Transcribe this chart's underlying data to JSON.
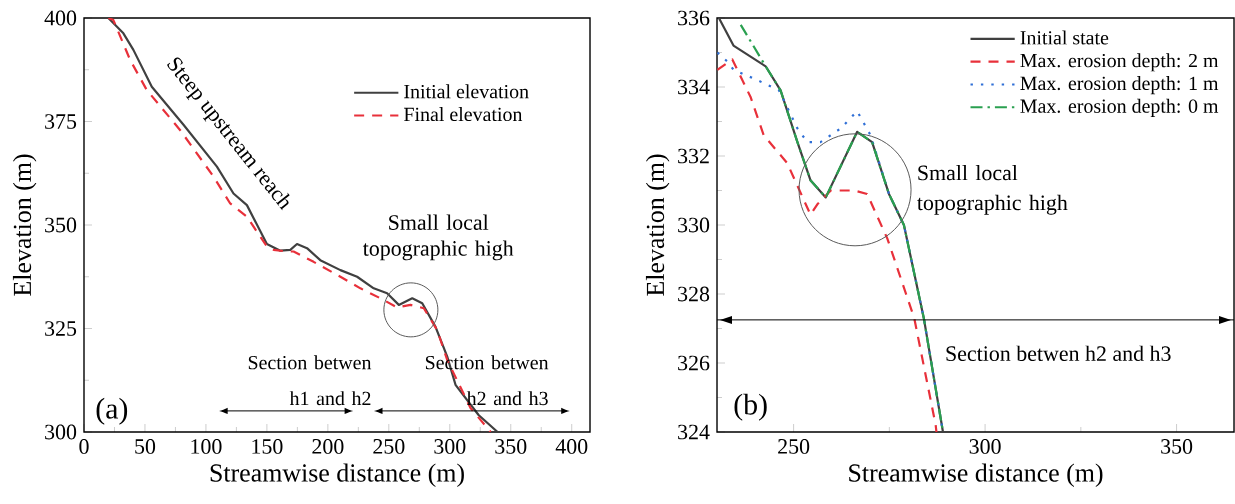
{
  "chart_data": [
    {
      "type": "line",
      "xlabel": "Streamwise distance (m)",
      "ylabel": "Elevation (m)",
      "xlim": [
        0,
        415
      ],
      "ylim": [
        300,
        400
      ],
      "xticks": [
        0,
        50,
        100,
        150,
        200,
        250,
        300,
        350,
        400
      ],
      "yticks": [
        300,
        325,
        350,
        375,
        400
      ],
      "legend": "top right",
      "annotations": [
        "Steep upstream reach",
        "Small local topographic high",
        "Section betwen h1 and h2",
        "Section betwen h2 and h3",
        "(a)"
      ],
      "series": [
        {
          "name": "Initial elevation",
          "color": "#404040",
          "line_style": "solid",
          "x": [
            20,
            32.3,
            40.5,
            55.6,
            81.6,
            109,
            122.6,
            133.6,
            150,
            161,
            169.2,
            174.7,
            182.9,
            193.8,
            210.3,
            224,
            237.6,
            248.6,
            258.2,
            269.2,
            277.4,
            288.3,
            297.9,
            304.7,
            323.6,
            339.2
          ],
          "values": [
            400,
            396.3,
            392.3,
            383.4,
            374.2,
            364.1,
            357.6,
            354.8,
            345.4,
            343.8,
            344,
            345.4,
            344.4,
            341.5,
            339.1,
            337.5,
            334.7,
            333.5,
            330.7,
            332.3,
            331.1,
            325.4,
            318.2,
            311.4,
            304.1,
            300
          ]
        },
        {
          "name": "Final elevation",
          "color": "#e8303a",
          "line_style": "dashed",
          "x": [
            20,
            24.1,
            37.8,
            51.5,
            78.9,
            106.2,
            119.9,
            133.6,
            150,
            155.5,
            166.5,
            171.9,
            188.3,
            210.3,
            226.7,
            243.1,
            256.8,
            267.8,
            278.7,
            289.7,
            297.9,
            317,
            333.5
          ],
          "values": [
            400,
            399.5,
            389.9,
            382.6,
            372.9,
            361.7,
            355.2,
            352,
            344.8,
            344,
            343.6,
            343.6,
            341.1,
            337.5,
            334.7,
            332.3,
            330.1,
            330.7,
            329.9,
            324.6,
            317.4,
            305.8,
            300
          ]
        }
      ]
    },
    {
      "type": "line",
      "xlabel": "Streamwise distance (m)",
      "ylabel": "Elevation (m)",
      "xlim": [
        230,
        365
      ],
      "ylim": [
        324,
        336
      ],
      "xticks": [
        250,
        300,
        350
      ],
      "yticks": [
        324,
        326,
        328,
        330,
        332,
        334,
        336
      ],
      "legend": "top right",
      "annotations": [
        "Small local topographic high",
        "(b)"
      ],
      "ref_lines": [
        {
          "axis": "y",
          "value": 327.25,
          "label": "Section betwen h2 and h3"
        }
      ],
      "series": [
        {
          "name": "Initial state",
          "color": "#404040",
          "line_style": "solid",
          "x": [
            230.5,
            234.3,
            242.7,
            246.6,
            251.0,
            254.4,
            258.4,
            266.6,
            270.5,
            274.9,
            278.8,
            284.0,
            288.4,
            289
          ],
          "values": [
            336,
            335.2,
            334.6,
            333.9,
            332.4,
            331.3,
            330.8,
            332.7,
            332.4,
            330.9,
            330.0,
            327.3,
            324.4,
            324
          ]
        },
        {
          "name": "Max. erosion depth: 2 m",
          "color": "#e8303a",
          "line_style": "dashed",
          "x": [
            230.1,
            234.0,
            238.8,
            242.2,
            248.3,
            254.4,
            256.2,
            259.7,
            265.8,
            269.2,
            274.5,
            281.5,
            287.1,
            287.3
          ],
          "values": [
            334.5,
            334.8,
            333.7,
            332.6,
            331.8,
            330.3,
            330.6,
            331.0,
            331.0,
            330.9,
            329.6,
            327.3,
            324.2,
            324
          ]
        },
        {
          "name": "Max. erosion depth: 1 m",
          "color": "#2f6fd6",
          "line_style": "dotted",
          "x": [
            230.1,
            233.1,
            234.3,
            240.5,
            246.2,
            251.0,
            253.6,
            257.0,
            262.3,
            266.6,
            270.1,
            274.9,
            278.8,
            284.0,
            288.4,
            289
          ],
          "values": [
            335.0,
            334.7,
            334.5,
            334.2,
            333.9,
            332.8,
            332.4,
            332.4,
            332.8,
            333.3,
            332.6,
            330.9,
            330.0,
            327.3,
            324.4,
            324
          ]
        },
        {
          "name": "Max. erosion depth: 0 m",
          "color": "#2aa050",
          "line_style": "dashdot",
          "x": [
            236.2,
            242.7,
            246.6,
            251.0,
            254.4,
            258.4,
            266.6,
            270.5,
            274.9,
            278.8,
            284.0,
            288.4,
            289
          ],
          "values": [
            335.8,
            334.6,
            333.9,
            332.4,
            331.3,
            330.8,
            332.7,
            332.4,
            330.9,
            330.0,
            327.3,
            324.4,
            324
          ]
        }
      ]
    }
  ]
}
